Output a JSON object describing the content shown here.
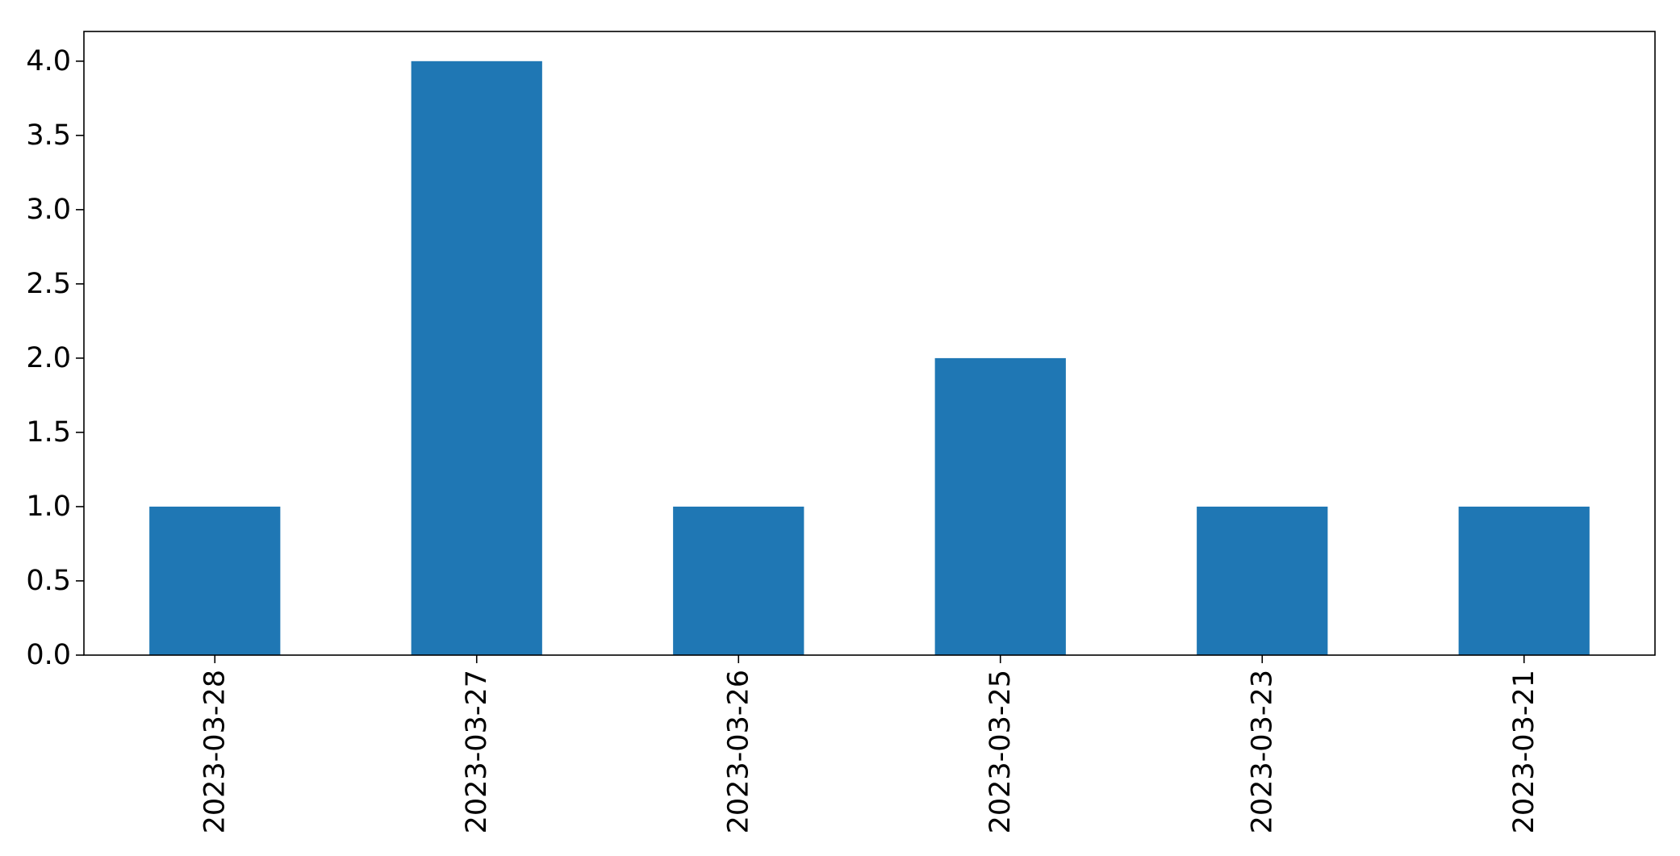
{
  "chart_data": {
    "type": "bar",
    "categories": [
      "2023-03-28",
      "2023-03-27",
      "2023-03-26",
      "2023-03-25",
      "2023-03-23",
      "2023-03-21"
    ],
    "values": [
      1,
      4,
      1,
      2,
      1,
      1
    ],
    "title": "",
    "xlabel": "",
    "ylabel": "",
    "ylim": [
      0,
      4.2
    ],
    "yticks": [
      "0.0",
      "0.5",
      "1.0",
      "1.5",
      "2.0",
      "2.5",
      "3.0",
      "3.5",
      "4.0"
    ],
    "grid": false,
    "legend": "none",
    "bar_color": "#1f77b4"
  }
}
